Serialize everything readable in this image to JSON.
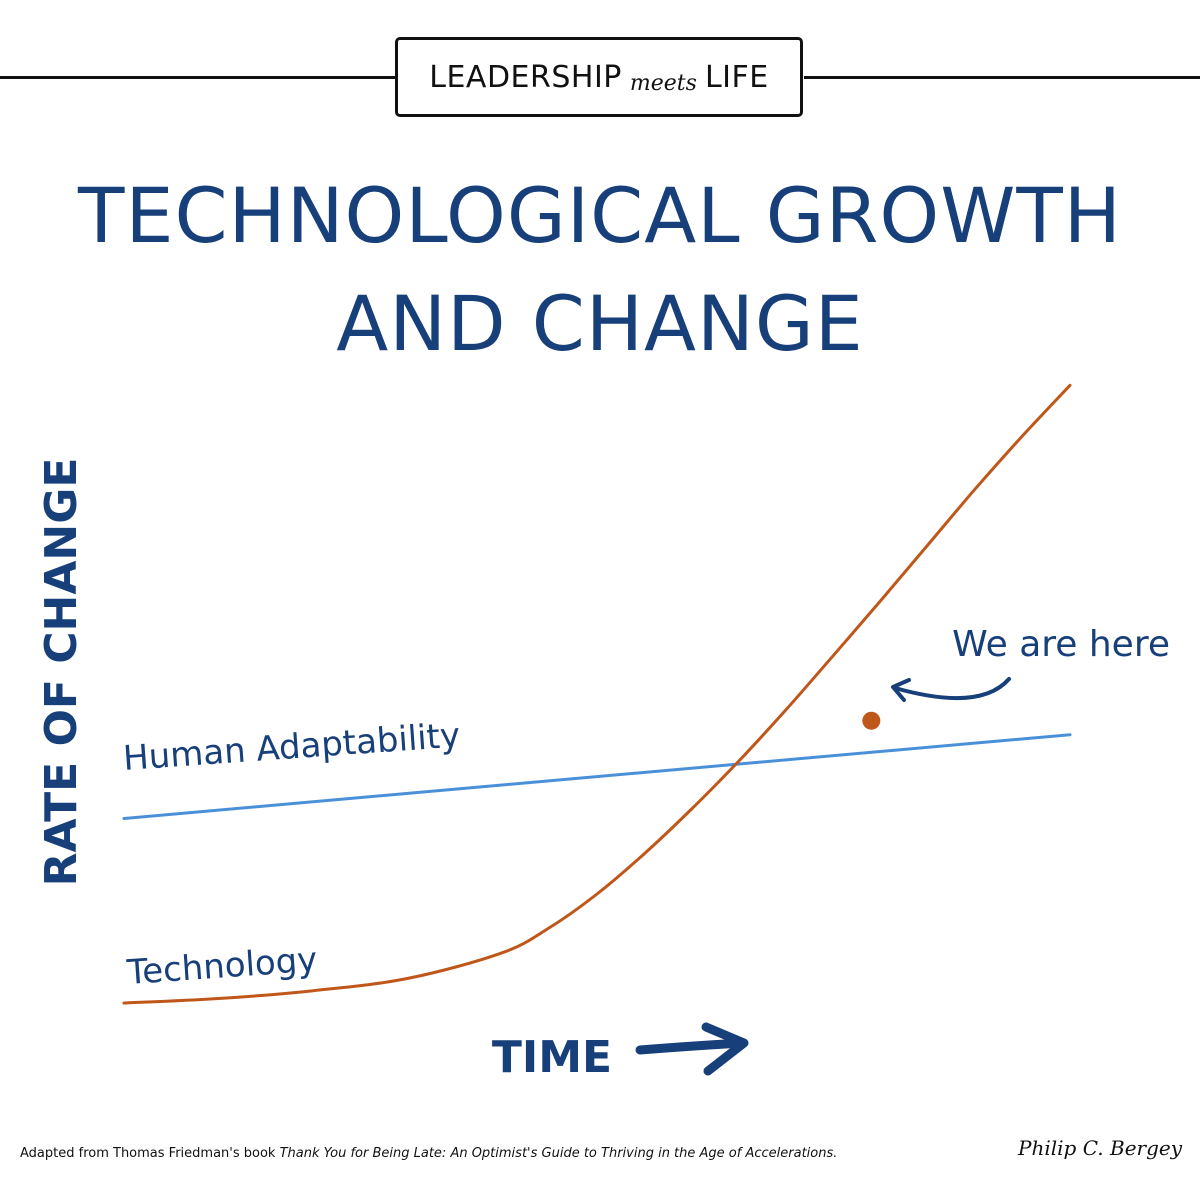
{
  "brand": {
    "part1": "LEADERSHIP",
    "part2": "meets",
    "part3": "LIFE"
  },
  "title": {
    "line1": "TECHNOLOGICAL GROWTH",
    "line2": "AND CHANGE"
  },
  "chart_data": {
    "type": "line",
    "xlabel": "TIME",
    "ylabel": "RATE OF CHANGE",
    "xlim": [
      0,
      100
    ],
    "ylim": [
      0,
      100
    ],
    "grid": false,
    "series": [
      {
        "name": "Human Adaptability",
        "color": "#4a90d9",
        "x": [
          0,
          100
        ],
        "y": [
          33,
          48
        ]
      },
      {
        "name": "Technology",
        "color": "#c0571a",
        "x": [
          0,
          10,
          20,
          30,
          40,
          45,
          50,
          55,
          60,
          65,
          70,
          75,
          80,
          85,
          90,
          95,
          100
        ],
        "y": [
          0,
          0.8,
          2.2,
          4.4,
          9,
          13.5,
          19.5,
          26.7,
          34.7,
          43.3,
          52.5,
          62.2,
          72,
          82,
          92,
          101.5,
          110.5
        ]
      }
    ],
    "annotations": [
      {
        "text": "We are here",
        "x": 79,
        "y": 50.5,
        "marker_color": "#c0571a"
      }
    ]
  },
  "footer": {
    "prefix": "Adapted from Thomas Friedman's book ",
    "book": "Thank You for Being Late: An Optimist's Guide to Thriving in the Age of Accelerations."
  },
  "signature": "Philip C. Bergey",
  "colors": {
    "navy": "#173f7a",
    "orange": "#c0571a",
    "blue": "#4a90d9"
  }
}
